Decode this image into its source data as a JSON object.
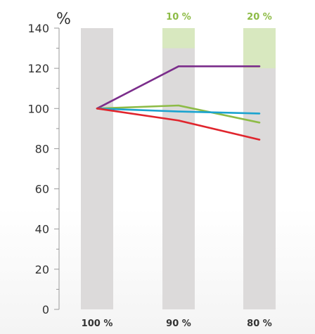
{
  "chart_data": {
    "type": "line",
    "ylabel": "%",
    "ylim": [
      0,
      140
    ],
    "yticks": [
      "0",
      "20",
      "40",
      "60",
      "80",
      "100",
      "120",
      "140"
    ],
    "categories": [
      "100 %",
      "90 %",
      "80 %"
    ],
    "band_top_labels": [
      "",
      "10 %",
      "20 %"
    ],
    "band_top_label_color": "#8dbb46",
    "reduction_band_color": "#d8e8bf",
    "column_color": "#dcdada",
    "series": [
      {
        "color": "#7b2d8b",
        "values": [
          100,
          121,
          121
        ]
      },
      {
        "color": "#8dbb46",
        "values": [
          100,
          101.5,
          93
        ]
      },
      {
        "color": "#1ba3cf",
        "values": [
          100,
          98.5,
          97.5
        ]
      },
      {
        "color": "#e0252d",
        "values": [
          100,
          94,
          84.5
        ]
      }
    ],
    "reduction_bands": [
      {
        "category": "90 %",
        "from": 130,
        "to": 140
      },
      {
        "category": "80 %",
        "from": 120,
        "to": 140
      }
    ],
    "grid": false,
    "legend": "none"
  }
}
